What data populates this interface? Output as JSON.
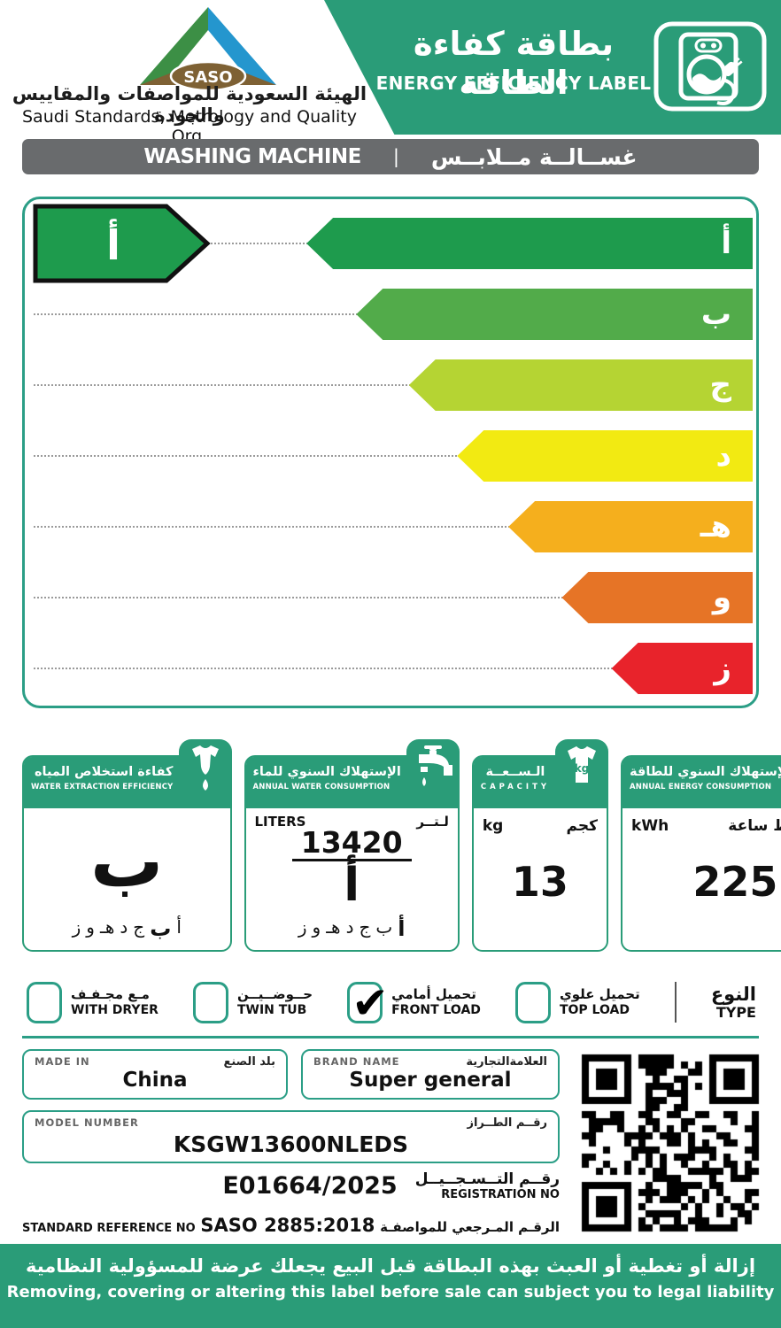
{
  "header": {
    "title_ar": "بطاقة كفاءة الطاقة",
    "title_en": "ENERGY EFFICIENCY LABEL",
    "org_ar": "الهيئة السعودية للمواصفات والمقاييس والجودة",
    "org_en": "Saudi Standards, Metrology and Quality Org.",
    "logo_text": "SASO"
  },
  "product_bar": {
    "en": "WASHING MACHINE",
    "divider": "|",
    "ar": "غســالــة مــلابــس"
  },
  "rating_scale": {
    "selected_letter": "أ",
    "selected_color": "#1E9B4D",
    "grades": [
      {
        "letter": "أ",
        "color": "#1E9B4D",
        "length": "61%"
      },
      {
        "letter": "ب",
        "color": "#52AB4A",
        "length": "54.2%"
      },
      {
        "letter": "ج",
        "color": "#B5D433",
        "length": "47%"
      },
      {
        "letter": "د",
        "color": "#F2EA12",
        "length": "40.4%"
      },
      {
        "letter": "هـ",
        "color": "#F5AF1D",
        "length": "33.4%"
      },
      {
        "letter": "و",
        "color": "#E67426",
        "length": "26.1%"
      },
      {
        "letter": "ز",
        "color": "#E8232B",
        "length": "19.3%"
      }
    ]
  },
  "info_boxes": [
    {
      "title_ar": "كفاءة استخلاص المياه",
      "title_en": "WATER EXTRACTION EFFICIENCY",
      "icon": "wrung-shirt-droplet-icon",
      "rating": "ب",
      "letters": [
        "أ",
        "ب",
        "ج",
        "د",
        "هـ",
        "و",
        "ز"
      ]
    },
    {
      "title_ar": "الإستهلاك السنوي للماء",
      "title_en": "ANNUAL WATER CONSUMPTION",
      "icon": "faucet-icon",
      "unit_en": "LITERS",
      "unit_ar": "لـتــر",
      "value": "13420",
      "rating": "أ",
      "letters": [
        "أ",
        "ب",
        "ج",
        "د",
        "هـ",
        "و",
        "ز"
      ]
    },
    {
      "title_ar": "الـســعــة",
      "title_en": "CAPACITY",
      "icon": "shirt-kg-icon",
      "unit_en": "kg",
      "unit_ar": "كجم",
      "value": "13"
    },
    {
      "title_ar": "الإستهلاك السنوي للطاقة",
      "title_en": "ANNUAL ENERGY CONSUMPTION",
      "icon": "lightning-bolt-icon",
      "unit_en": "kWh",
      "unit_ar": "كيلو واط ساعة",
      "value": "225"
    }
  ],
  "type_selector": {
    "label_ar": "النوع",
    "label_en": "TYPE",
    "options": [
      {
        "label_ar": "تحميل علوي",
        "label_en": "TOP LOAD",
        "checked": false,
        "check_glyph": ""
      },
      {
        "label_ar": "تحميل أمامي",
        "label_en": "FRONT LOAD",
        "checked": true,
        "check_glyph": "✔"
      },
      {
        "label_ar": "حــوضــيــن",
        "label_en": "TWIN TUB",
        "checked": false,
        "check_glyph": ""
      },
      {
        "label_ar": "مـع مجـفـف",
        "label_en": "WITH DRYER",
        "checked": false,
        "check_glyph": ""
      }
    ]
  },
  "fields": {
    "made_in": {
      "label_en": "MADE IN",
      "label_ar": "بلد الصنع",
      "value": "China"
    },
    "brand": {
      "label_en": "BRAND NAME",
      "label_ar": "العلامةالتجارية",
      "value": "Super general"
    },
    "model": {
      "label_en": "MODEL NUMBER",
      "label_ar": "رقــم الطــراز",
      "value": "KSGW13600NLEDS"
    },
    "registration": {
      "label_ar": "رقــم التــسـجــيــل",
      "label_en": "REGISTRATION NO",
      "value": "E01664/2025"
    },
    "standard": {
      "label_en": "STANDARD REFERENCE NO",
      "value": "SASO 2885:2018",
      "label_ar": "الرقـم المـرجعي للمواصفـة"
    }
  },
  "footer": {
    "line_ar": "إزالة أو تغطية أو العبث بهذه البطاقة قبل البيع يجعلك عرضة للمسؤولية النظامية",
    "line_en": "Removing, covering or altering this label before sale can subject you to legal liability"
  },
  "colors": {
    "brand_green": "#2A9C78",
    "teal_border": "#2B9E86",
    "bar_gray": "#696B6D",
    "selected_arrow_green": "#1E9B4D"
  }
}
